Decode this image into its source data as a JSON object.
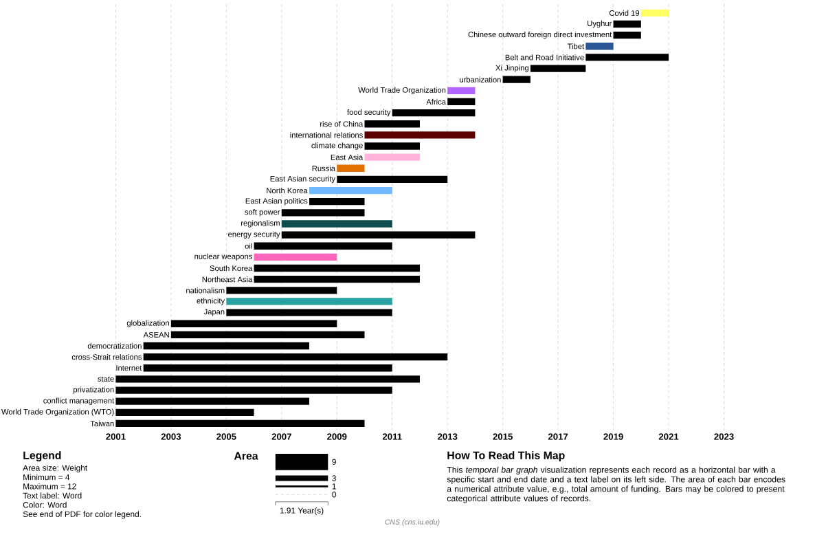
{
  "chart_data": {
    "type": "bar",
    "orientation": "horizontal",
    "categories": [
      "Covid 19",
      "Uyghur",
      "Chinese outward foreign direct investment",
      "Tibet",
      "Belt and Road Initiative",
      "Xi Jinping",
      "urbanization",
      "World Trade Organization",
      "Africa",
      "food security",
      "rise of China",
      "international relations",
      "climate change",
      "East Asia",
      "Russia",
      "East Asian security",
      "North Korea",
      "East Asian politics",
      "soft power",
      "regionalism",
      "energy security",
      "oil",
      "nuclear weapons",
      "South Korea",
      "Northeast Asia",
      "nationalism",
      "ethnicity",
      "Japan",
      "globalization",
      "ASEAN",
      "democratization",
      "cross-Strait relations",
      "Internet",
      "state",
      "privatization",
      "conflict management",
      "World Trade Organization (WTO)",
      "Taiwan"
    ],
    "base": [
      2020,
      2019,
      2019,
      2018,
      2018,
      2016,
      2015,
      2013,
      2013,
      2011,
      2010,
      2010,
      2010,
      2010,
      2009,
      2009,
      2008,
      2008,
      2007,
      2007,
      2007,
      2006,
      2006,
      2006,
      2006,
      2005,
      2005,
      2005,
      2003,
      2003,
      2002,
      2002,
      2002,
      2001,
      2001,
      2001,
      2001,
      2001
    ],
    "values": [
      1,
      1,
      1,
      1,
      3,
      2,
      1,
      1,
      1,
      3,
      2,
      4,
      2,
      2,
      1,
      4,
      3,
      2,
      3,
      4,
      7,
      5,
      3,
      6,
      6,
      4,
      6,
      6,
      6,
      7,
      6,
      11,
      9,
      11,
      10,
      7,
      5,
      9
    ],
    "colors": [
      "#ffff66",
      "#000000",
      "#000000",
      "#2b5797",
      "#000000",
      "#000000",
      "#000000",
      "#b266ff",
      "#000000",
      "#000000",
      "#000000",
      "#5c0000",
      "#000000",
      "#ffb3d9",
      "#e07000",
      "#000000",
      "#70b8ff",
      "#000000",
      "#000000",
      "#0d4d4d",
      "#000000",
      "#000000",
      "#ff66bb",
      "#000000",
      "#000000",
      "#000000",
      "#26a0a0",
      "#000000",
      "#000000",
      "#000000",
      "#000000",
      "#000000",
      "#000000",
      "#000000",
      "#000000",
      "#000000",
      "#000000",
      "#000000"
    ],
    "xlim": [
      2001,
      2023
    ],
    "xticks": [
      2001,
      2003,
      2005,
      2007,
      2009,
      2011,
      2013,
      2015,
      2017,
      2019,
      2021,
      2023
    ],
    "grid": "x",
    "annotations": [
      "Legend",
      "Area size: Weight",
      "Minimum = 4",
      "Maximum = 12",
      "Text label: Word",
      "Color: Word",
      "See end of PDF for color legend.",
      "Area",
      "9",
      "3",
      "1",
      "0",
      "1.91 Year(s)",
      "How To Read This Map",
      "This *temporal bar graph* visualization represents each record as a horizontal bar with a specific start and end date and a text label on its left side. The area of each bar encodes a numerical attribute value, e.g., total amount of funding. Bars may be colored to present categorical attribute values of records.",
      "CNS (cns.iu.edu)"
    ]
  }
}
